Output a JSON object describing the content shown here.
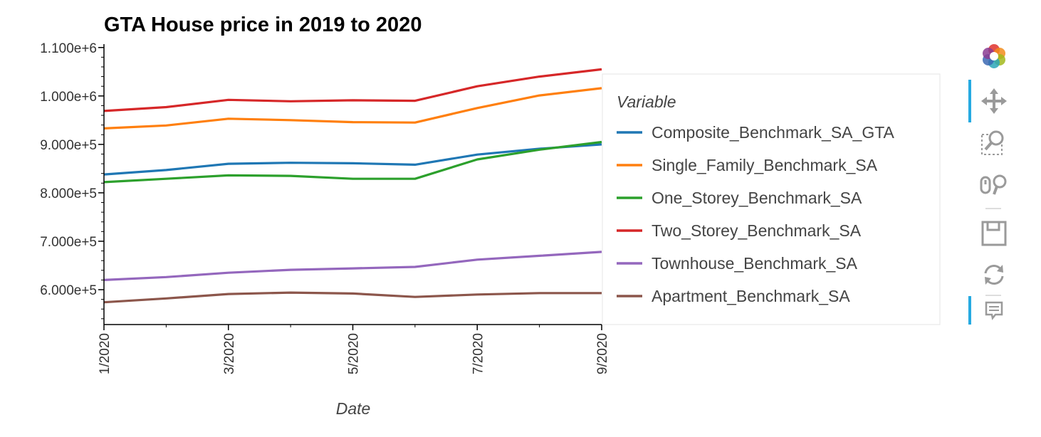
{
  "chart_data": {
    "type": "line",
    "title": "GTA House price in 2019 to 2020",
    "xlabel": "Date",
    "ylabel": "",
    "x": [
      1,
      2,
      3,
      4,
      5,
      6,
      7,
      8,
      9
    ],
    "x_tick_values": [
      1,
      3,
      5,
      7,
      9
    ],
    "x_tick_labels": [
      "1/2020",
      "3/2020",
      "5/2020",
      "7/2020",
      "9/2020"
    ],
    "xlim": [
      1,
      9
    ],
    "ylim": [
      528000,
      1107000
    ],
    "y_ticks": [
      600000,
      700000,
      800000,
      900000,
      1000000,
      1100000
    ],
    "y_tick_labels": [
      "6.000e+5",
      "7.000e+5",
      "8.000e+5",
      "9.000e+5",
      "1.000e+6",
      "1.100e+6"
    ],
    "grid": false,
    "legend_title": "Variable",
    "legend_position": "right",
    "series": [
      {
        "name": "Composite_Benchmark_SA_GTA",
        "color": "#1f77b4",
        "values": [
          838000,
          847000,
          860000,
          862000,
          861000,
          858000,
          879000,
          891000,
          900000
        ]
      },
      {
        "name": "Single_Family_Benchmark_SA",
        "color": "#ff7f0e",
        "values": [
          933000,
          939000,
          953000,
          950000,
          946000,
          945000,
          975000,
          1001000,
          1016000
        ]
      },
      {
        "name": "One_Storey_Benchmark_SA",
        "color": "#2ca02c",
        "values": [
          822000,
          829000,
          836000,
          835000,
          829000,
          829000,
          869000,
          889000,
          905000
        ]
      },
      {
        "name": "Two_Storey_Benchmark_SA",
        "color": "#d62728",
        "values": [
          969000,
          977000,
          992000,
          989000,
          991000,
          990000,
          1020000,
          1040000,
          1055000
        ]
      },
      {
        "name": "Townhouse_Benchmark_SA",
        "color": "#9467bd",
        "values": [
          620000,
          626000,
          635000,
          641000,
          644000,
          647000,
          662000,
          670000,
          678000
        ]
      },
      {
        "name": "Apartment_Benchmark_SA",
        "color": "#8c564b",
        "values": [
          574000,
          582000,
          591000,
          594000,
          592000,
          585000,
          590000,
          593000,
          593000
        ]
      }
    ]
  },
  "toolbar": {
    "logo": "bokeh-logo-icon",
    "tools": [
      {
        "name": "pan-tool",
        "icon": "move-icon",
        "active": true
      },
      {
        "name": "box-zoom-tool",
        "icon": "box-zoom-icon",
        "active": false
      },
      {
        "name": "wheel-zoom-tool",
        "icon": "wheel-zoom-icon",
        "active": false
      },
      {
        "name": "save-tool",
        "icon": "save-icon",
        "active": false
      },
      {
        "name": "reset-tool",
        "icon": "reset-icon",
        "active": false
      },
      {
        "name": "hover-tool",
        "icon": "hover-icon",
        "active": true
      }
    ]
  }
}
